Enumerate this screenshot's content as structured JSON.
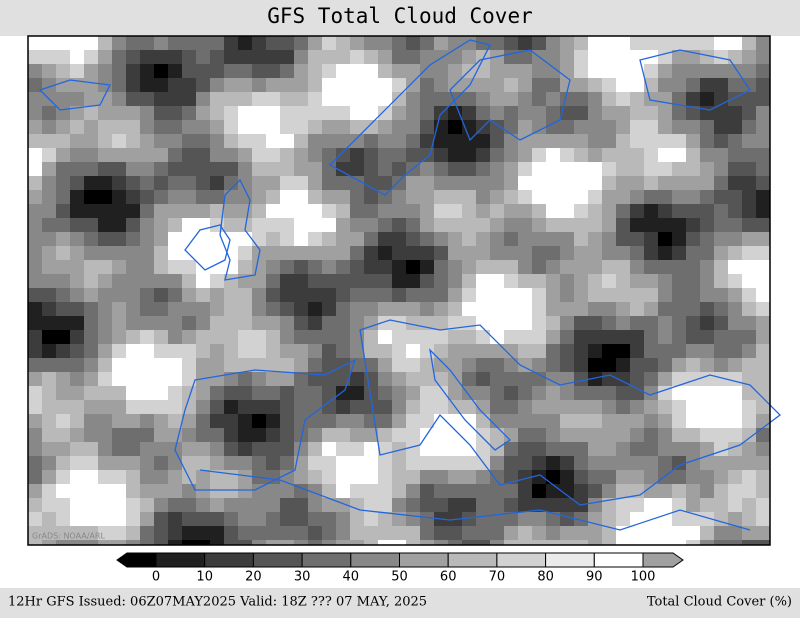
{
  "header": {
    "title": "GFS Total Cloud Cover"
  },
  "map": {
    "watermark": "GrADS: NOAA/ARL"
  },
  "colorbar": {
    "ticks": [
      0,
      10,
      20,
      30,
      40,
      50,
      60,
      70,
      80,
      90,
      100
    ]
  },
  "footer": {
    "left": "12Hr GFS Issued: 06Z07MAY2025 Valid: 18Z ??? 07 MAY, 2025",
    "right": "Total Cloud Cover (%)"
  }
}
